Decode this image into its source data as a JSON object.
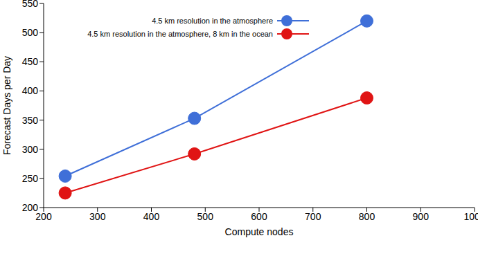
{
  "chart_data": {
    "type": "line",
    "x_label": "Compute nodes",
    "y_label": "Forecast Days per Day",
    "xlim": [
      200,
      1000
    ],
    "xticks": [
      200,
      300,
      400,
      500,
      600,
      700,
      800,
      900,
      1000
    ],
    "ylim": [
      200,
      550
    ],
    "yticks": [
      200,
      250,
      300,
      350,
      400,
      450,
      500,
      550
    ],
    "grid": false,
    "legend": "top",
    "marker": "circle",
    "series": [
      {
        "name": "4.5 km resolution in the atmosphere",
        "color": "#3f6fd8",
        "x": [
          240,
          480,
          800
        ],
        "values": [
          254,
          353,
          520
        ]
      },
      {
        "name": "4.5 km resolution in the atmosphere, 8 km in the ocean",
        "color": "#e01414",
        "x": [
          240,
          480,
          800
        ],
        "values": [
          225,
          292,
          388
        ]
      }
    ]
  }
}
